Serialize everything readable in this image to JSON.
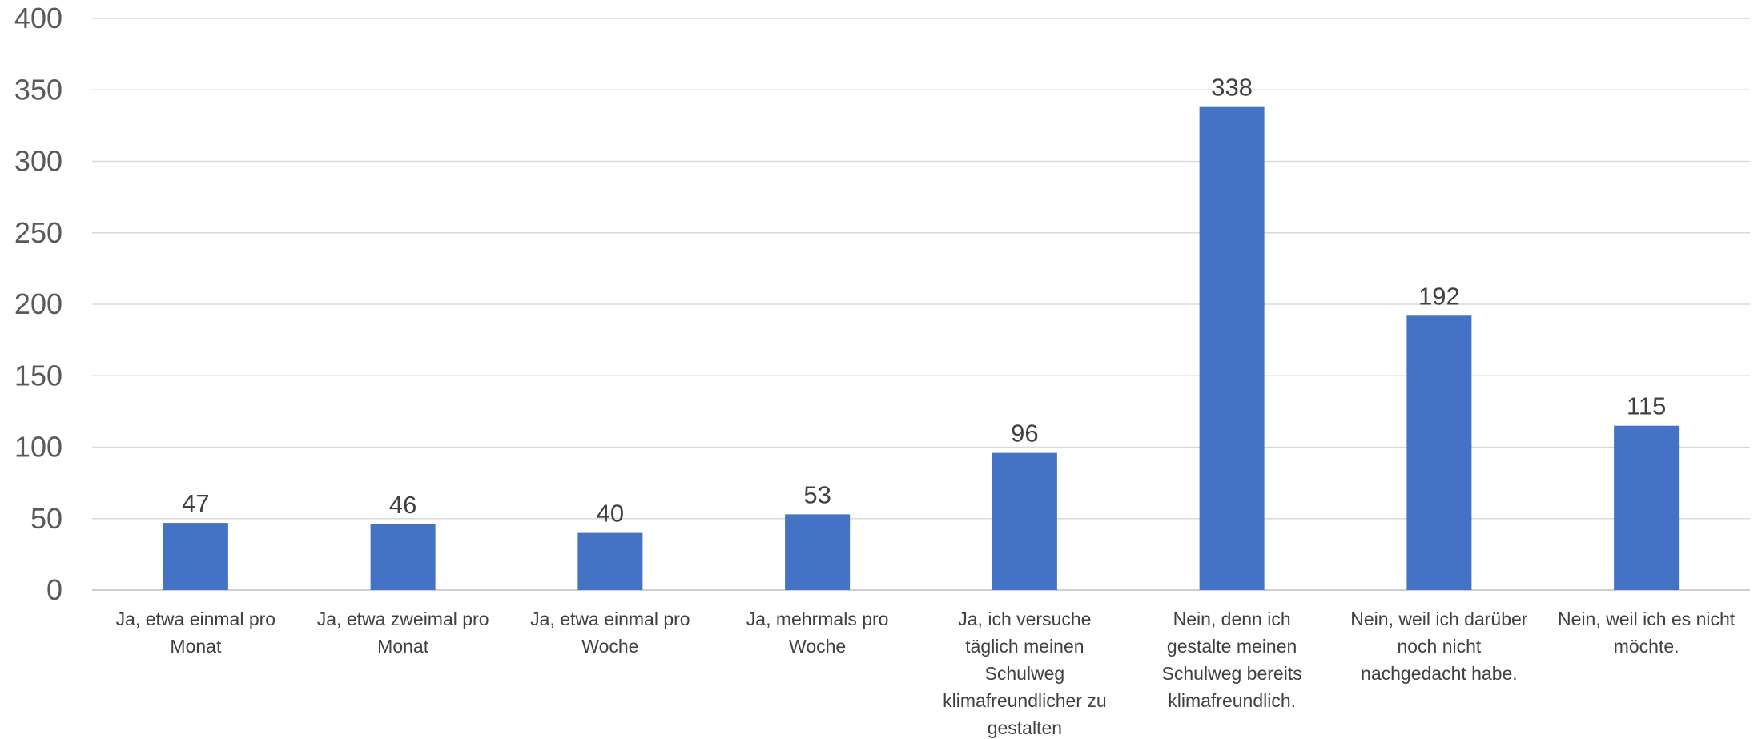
{
  "chart_data": {
    "type": "bar",
    "title": "",
    "xlabel": "",
    "ylabel": "",
    "ylim": [
      0,
      400
    ],
    "yticks": [
      0,
      50,
      100,
      150,
      200,
      250,
      300,
      350,
      400
    ],
    "grid": true,
    "legend": "none",
    "bar_color": "#4472c4",
    "categories": [
      [
        "Ja, etwa einmal pro",
        "Monat"
      ],
      [
        "Ja, etwa zweimal pro",
        "Monat"
      ],
      [
        "Ja, etwa einmal pro",
        "Woche"
      ],
      [
        "Ja, mehrmals pro",
        "Woche"
      ],
      [
        "Ja, ich versuche",
        "täglich meinen",
        "Schulweg",
        "klimafreundlicher zu",
        "gestalten"
      ],
      [
        "Nein, denn ich",
        "gestalte meinen",
        "Schulweg bereits",
        "klimafreundlich."
      ],
      [
        "Nein, weil ich darüber",
        "noch nicht",
        "nachgedacht habe."
      ],
      [
        "Nein, weil ich es nicht",
        "möchte."
      ]
    ],
    "values": [
      47,
      46,
      40,
      53,
      96,
      338,
      192,
      115
    ]
  }
}
